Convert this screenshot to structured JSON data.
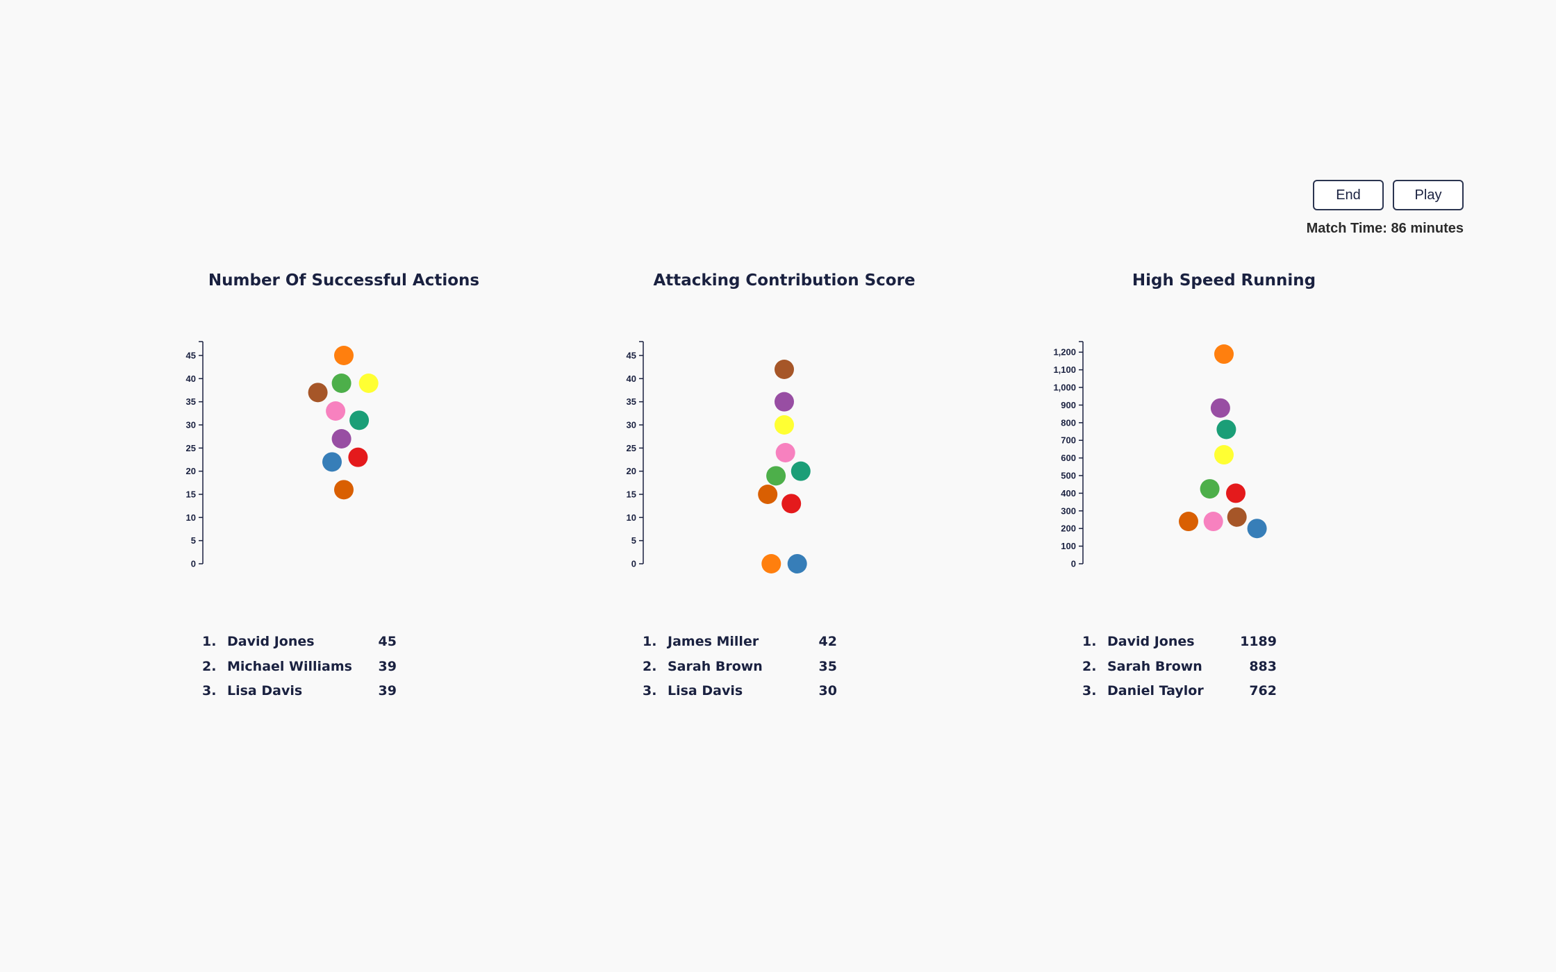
{
  "controls": {
    "end_label": "End",
    "play_label": "Play",
    "match_time": "Match Time: 86 minutes"
  },
  "panels": [
    {
      "title": "Number Of Successful Actions",
      "leaderboard": [
        {
          "rank": "1.",
          "name": "David Jones",
          "value": "45"
        },
        {
          "rank": "2.",
          "name": "Michael Williams",
          "value": "39"
        },
        {
          "rank": "3.",
          "name": "Lisa Davis",
          "value": "39"
        }
      ]
    },
    {
      "title": "Attacking Contribution Score",
      "leaderboard": [
        {
          "rank": "1.",
          "name": "James Miller",
          "value": "42"
        },
        {
          "rank": "2.",
          "name": "Sarah Brown",
          "value": "35"
        },
        {
          "rank": "3.",
          "name": "Lisa Davis",
          "value": "30"
        }
      ]
    },
    {
      "title": "High Speed Running",
      "leaderboard": [
        {
          "rank": "1.",
          "name": "David Jones",
          "value": "1189"
        },
        {
          "rank": "2.",
          "name": "Sarah Brown",
          "value": "883"
        },
        {
          "rank": "3.",
          "name": "Daniel Taylor",
          "value": "762"
        }
      ]
    }
  ],
  "chart_data": [
    {
      "type": "scatter",
      "title": "Number Of Successful Actions",
      "ylim": [
        0,
        48
      ],
      "yticks": [
        0,
        5,
        10,
        15,
        20,
        25,
        30,
        35,
        40,
        45
      ],
      "points": [
        {
          "value": 45,
          "color": "#ff7f0e",
          "jitter": 0
        },
        {
          "value": 39,
          "color": "#4daf4a",
          "jitter": -0.1
        },
        {
          "value": 39,
          "color": "#ffff33",
          "jitter": 1.05
        },
        {
          "value": 37,
          "color": "#a65628",
          "jitter": -1.1
        },
        {
          "value": 33,
          "color": "#f781bf",
          "jitter": -0.35
        },
        {
          "value": 31,
          "color": "#1b9e77",
          "jitter": 0.65
        },
        {
          "value": 27,
          "color": "#984ea3",
          "jitter": -0.1
        },
        {
          "value": 23,
          "color": "#e41a1c",
          "jitter": 0.6
        },
        {
          "value": 22,
          "color": "#377eb8",
          "jitter": -0.5
        },
        {
          "value": 16,
          "color": "#d95f02",
          "jitter": 0
        }
      ]
    },
    {
      "type": "scatter",
      "title": "Attacking Contribution Score",
      "ylim": [
        0,
        48
      ],
      "yticks": [
        0,
        5,
        10,
        15,
        20,
        25,
        30,
        35,
        40,
        45
      ],
      "points": [
        {
          "value": 42,
          "color": "#a65628",
          "jitter": 0
        },
        {
          "value": 35,
          "color": "#984ea3",
          "jitter": 0
        },
        {
          "value": 30,
          "color": "#ffff33",
          "jitter": 0
        },
        {
          "value": 24,
          "color": "#f781bf",
          "jitter": 0.05
        },
        {
          "value": 20,
          "color": "#1b9e77",
          "jitter": 0.7
        },
        {
          "value": 19,
          "color": "#4daf4a",
          "jitter": -0.35
        },
        {
          "value": 15,
          "color": "#d95f02",
          "jitter": -0.7
        },
        {
          "value": 13,
          "color": "#e41a1c",
          "jitter": 0.3
        },
        {
          "value": 0,
          "color": "#ff7f0e",
          "jitter": -0.55
        },
        {
          "value": 0,
          "color": "#377eb8",
          "jitter": 0.55
        }
      ]
    },
    {
      "type": "scatter",
      "title": "High Speed Running",
      "ylim": [
        0,
        1260
      ],
      "yticks": [
        0,
        100,
        200,
        300,
        400,
        500,
        600,
        700,
        800,
        900,
        1000,
        1100,
        1200
      ],
      "points": [
        {
          "value": 1189,
          "color": "#ff7f0e",
          "jitter": 0
        },
        {
          "value": 883,
          "color": "#984ea3",
          "jitter": -0.15
        },
        {
          "value": 762,
          "color": "#1b9e77",
          "jitter": 0.1
        },
        {
          "value": 618,
          "color": "#ffff33",
          "jitter": 0
        },
        {
          "value": 425,
          "color": "#4daf4a",
          "jitter": -0.6
        },
        {
          "value": 400,
          "color": "#e41a1c",
          "jitter": 0.5
        },
        {
          "value": 265,
          "color": "#a65628",
          "jitter": 0.55
        },
        {
          "value": 240,
          "color": "#d95f02",
          "jitter": -1.5
        },
        {
          "value": 240,
          "color": "#f781bf",
          "jitter": -0.45
        },
        {
          "value": 200,
          "color": "#377eb8",
          "jitter": 1.4
        }
      ]
    }
  ]
}
